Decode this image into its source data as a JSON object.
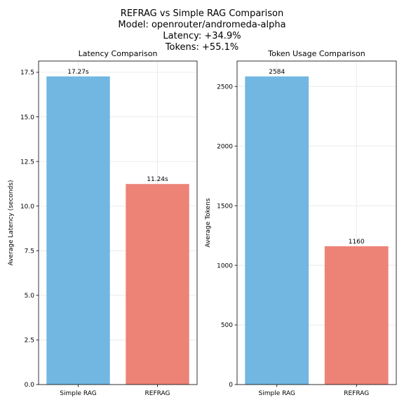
{
  "figure": {
    "suptitle_lines": [
      "REFRAG vs Simple RAG Comparison",
      "Model: openrouter/andromeda-alpha",
      "Latency: +34.9%",
      "Tokens: +55.1%"
    ]
  },
  "colors": {
    "simple_rag": "#72b6e2",
    "refrag": "#ed8277",
    "grid": "#e6e6e6",
    "axis": "#000000"
  },
  "chart_data": [
    {
      "type": "bar",
      "title": "Latency Comparison",
      "xlabel": "",
      "ylabel": "Average Latency (seconds)",
      "categories": [
        "Simple RAG",
        "REFRAG"
      ],
      "values": [
        17.27,
        11.24
      ],
      "bar_labels": [
        "17.27s",
        "11.24s"
      ],
      "ylim": [
        0,
        18.13
      ],
      "yticks": [
        0,
        2.5,
        5,
        7.5,
        10,
        12.5,
        15,
        17.5
      ],
      "ytick_labels": [
        "0.0",
        "2.5",
        "5.0",
        "7.5",
        "10.0",
        "12.5",
        "15.0",
        "17.5"
      ],
      "grid": true
    },
    {
      "type": "bar",
      "title": "Token Usage Comparison",
      "xlabel": "",
      "ylabel": "Average Tokens",
      "categories": [
        "Simple RAG",
        "REFRAG"
      ],
      "values": [
        2584,
        1160
      ],
      "bar_labels": [
        "2584",
        "1160"
      ],
      "ylim": [
        0,
        2713
      ],
      "yticks": [
        0,
        500,
        1000,
        1500,
        2000,
        2500
      ],
      "ytick_labels": [
        "0",
        "500",
        "1000",
        "1500",
        "2000",
        "2500"
      ],
      "grid": true
    }
  ]
}
